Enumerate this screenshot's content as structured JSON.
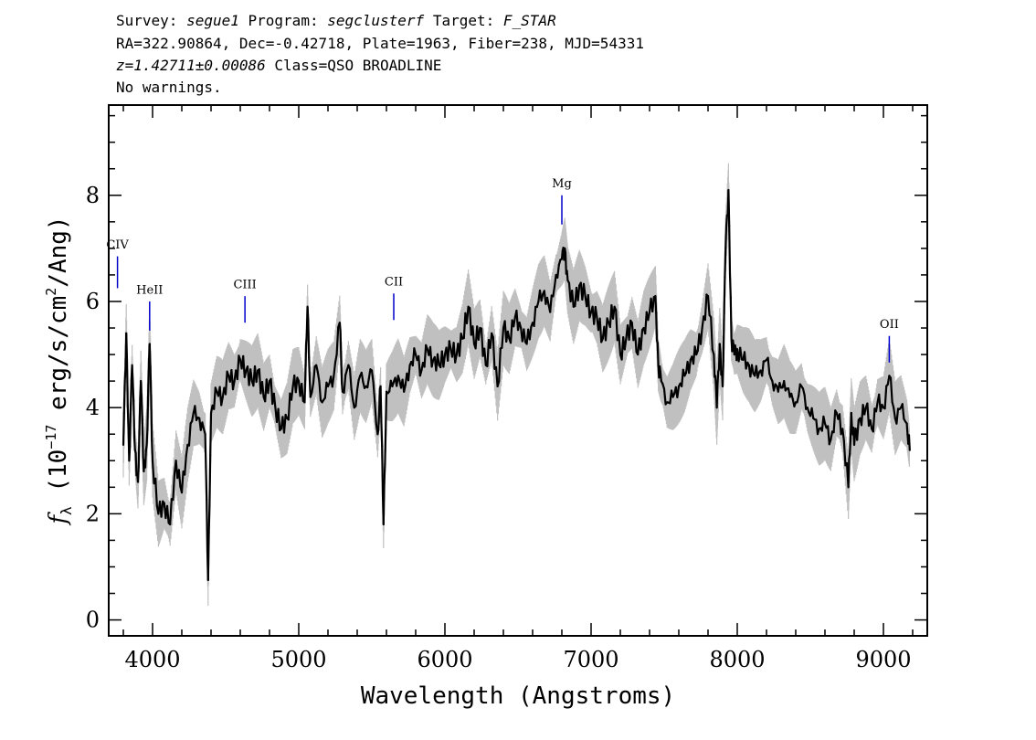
{
  "header": {
    "line1": {
      "survey_label": "Survey:",
      "survey": "segue1",
      "program_label": "Program:",
      "program": "segclusterf",
      "target_label": "Target:",
      "target": "F_STAR"
    },
    "line2": "RA=322.90864, Dec=-0.42718, Plate=1963, Fiber=238, MJD=54331",
    "line3": {
      "redshift": "z=1.42711±0.00086",
      "class": "Class=QSO BROADLINE"
    },
    "line4": "No warnings."
  },
  "chart_data": {
    "type": "line",
    "title": "",
    "xlabel": "Wavelength (Angstroms)",
    "ylabel_prefix": "f",
    "ylabel_subscript": "λ",
    "ylabel_main": "(10",
    "ylabel_exp": "−17",
    "ylabel_units": "erg/s/cm",
    "ylabel_units_exp": "2",
    "ylabel_tail": "/Ang)",
    "xlim": [
      3700,
      9300
    ],
    "ylim": [
      -0.3,
      9.7
    ],
    "x_ticks": [
      4000,
      5000,
      6000,
      7000,
      8000,
      9000
    ],
    "x_tick_labels": [
      "4000",
      "5000",
      "6000",
      "7000",
      "8000",
      "9000"
    ],
    "y_ticks": [
      0,
      2,
      4,
      6,
      8
    ],
    "y_tick_labels": [
      "0",
      "2",
      "4",
      "6",
      "8"
    ],
    "series": [
      {
        "role": "flux",
        "color": "#000000",
        "x": [
          3800,
          3820,
          3840,
          3860,
          3880,
          3900,
          3920,
          3940,
          3960,
          3980,
          4000,
          4040,
          4080,
          4120,
          4160,
          4200,
          4240,
          4280,
          4320,
          4360,
          4380,
          4400,
          4440,
          4480,
          4520,
          4560,
          4600,
          4640,
          4680,
          4720,
          4760,
          4800,
          4840,
          4880,
          4920,
          4960,
          5000,
          5040,
          5060,
          5080,
          5120,
          5160,
          5200,
          5240,
          5280,
          5300,
          5340,
          5380,
          5420,
          5460,
          5500,
          5540,
          5560,
          5580,
          5600,
          5640,
          5680,
          5720,
          5760,
          5800,
          5840,
          5880,
          5920,
          5960,
          6000,
          6040,
          6080,
          6120,
          6160,
          6200,
          6240,
          6280,
          6320,
          6360,
          6400,
          6440,
          6480,
          6520,
          6560,
          6600,
          6640,
          6680,
          6720,
          6760,
          6800,
          6820,
          6840,
          6880,
          6920,
          6960,
          7000,
          7040,
          7080,
          7120,
          7160,
          7200,
          7240,
          7280,
          7320,
          7360,
          7400,
          7440,
          7460,
          7480,
          7520,
          7560,
          7600,
          7640,
          7680,
          7720,
          7760,
          7800,
          7840,
          7860,
          7880,
          7900,
          7920,
          7940,
          7960,
          7980,
          8000,
          8040,
          8080,
          8120,
          8160,
          8200,
          8240,
          8280,
          8320,
          8360,
          8400,
          8440,
          8480,
          8520,
          8560,
          8600,
          8640,
          8680,
          8720,
          8760,
          8780,
          8800,
          8840,
          8880,
          8920,
          8960,
          9000,
          9040,
          9080,
          9120,
          9160,
          9180
        ],
        "y": [
          3.3,
          5.4,
          3.0,
          4.8,
          3.2,
          2.6,
          4.5,
          2.8,
          3.3,
          5.2,
          3.0,
          2.0,
          2.2,
          1.8,
          3.0,
          2.4,
          3.3,
          3.9,
          3.8,
          3.5,
          0.75,
          3.9,
          4.3,
          4.2,
          4.6,
          4.5,
          4.9,
          4.7,
          4.5,
          4.7,
          4.2,
          4.5,
          4.0,
          3.6,
          3.8,
          4.4,
          4.5,
          4.1,
          5.9,
          4.2,
          4.8,
          4.1,
          4.4,
          4.6,
          5.6,
          4.3,
          4.8,
          4.0,
          4.6,
          4.4,
          4.7,
          3.5,
          4.4,
          1.8,
          4.3,
          4.4,
          4.6,
          4.3,
          4.8,
          5.0,
          4.7,
          5.1,
          4.9,
          4.8,
          5.0,
          5.1,
          5.0,
          5.3,
          5.9,
          5.2,
          5.5,
          4.8,
          5.4,
          4.4,
          5.5,
          5.3,
          5.7,
          5.5,
          5.2,
          5.6,
          6.0,
          6.2,
          5.8,
          6.5,
          6.8,
          7.0,
          6.4,
          5.9,
          6.3,
          6.1,
          5.8,
          5.7,
          5.3,
          5.6,
          5.9,
          5.0,
          5.3,
          5.6,
          5.0,
          5.5,
          5.8,
          6.1,
          4.8,
          4.5,
          4.1,
          4.2,
          4.4,
          4.6,
          4.9,
          5.0,
          5.5,
          6.1,
          5.0,
          4.0,
          5.2,
          4.4,
          7.0,
          8.1,
          5.3,
          5.0,
          5.1,
          4.9,
          4.8,
          4.6,
          4.7,
          4.9,
          4.5,
          4.3,
          4.5,
          4.2,
          4.1,
          4.4,
          4.0,
          3.8,
          3.6,
          3.7,
          3.4,
          3.9,
          3.6,
          2.5,
          3.9,
          3.3,
          3.8,
          4.0,
          3.6,
          4.1,
          4.0,
          4.6,
          3.8,
          4.0,
          3.7,
          3.2
        ]
      }
    ],
    "emission_lines": [
      {
        "label": "CIV",
        "wavelength": 3760,
        "y_label": 7.0,
        "y_top": 6.85,
        "y_bottom": 6.25
      },
      {
        "label": "HeII",
        "wavelength": 3980,
        "y_label": 6.15,
        "y_top": 6.0,
        "y_bottom": 5.45
      },
      {
        "label": "CIII",
        "wavelength": 4632,
        "y_label": 6.25,
        "y_top": 6.1,
        "y_bottom": 5.6
      },
      {
        "label": "CII",
        "wavelength": 5650,
        "y_label": 6.3,
        "y_top": 6.15,
        "y_bottom": 5.65
      },
      {
        "label": "Mg",
        "wavelength": 6800,
        "y_label": 8.15,
        "y_top": 8.0,
        "y_bottom": 7.45
      },
      {
        "label": "OII",
        "wavelength": 9040,
        "y_label": 5.5,
        "y_top": 5.35,
        "y_bottom": 4.85
      }
    ],
    "line_marker_color": "#0000cc",
    "error_color": "#c0c0c0",
    "grid": false,
    "legend": "none"
  }
}
